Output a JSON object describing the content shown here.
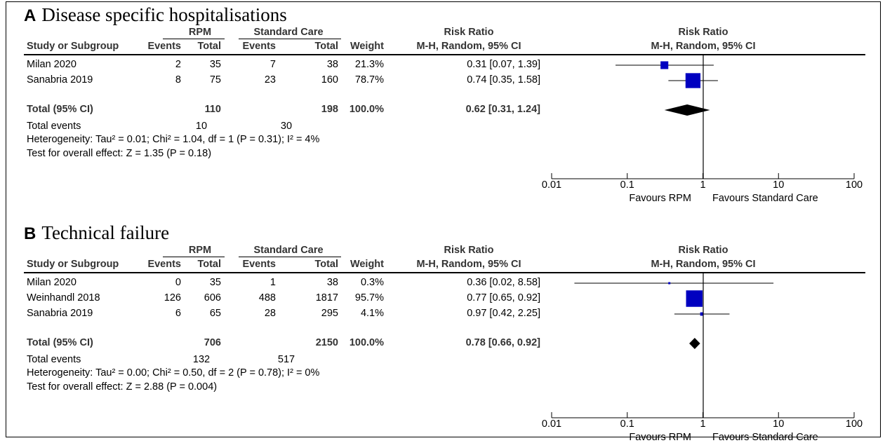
{
  "chart_data": [
    {
      "type": "forest",
      "panel_letter": "A",
      "title": "Disease specific hospitalisations",
      "group1_label": "RPM",
      "group2_label": "Standard Care",
      "header_study": "Study or Subgroup",
      "header_events": "Events",
      "header_total": "Total",
      "header_weight": "Weight",
      "header_rr": "Risk Ratio",
      "header_method": "M-H, Random, 95% CI",
      "studies": [
        {
          "name": "Milan 2020",
          "e1": "2",
          "t1": "35",
          "e2": "7",
          "t2": "38",
          "weight": "21.3%",
          "ci_text": "0.31 [0.07, 1.39]",
          "rr": 0.31,
          "lo": 0.07,
          "hi": 1.39,
          "w": 21.3
        },
        {
          "name": "Sanabria 2019",
          "e1": "8",
          "t1": "75",
          "e2": "23",
          "t2": "160",
          "weight": "78.7%",
          "ci_text": "0.74 [0.35, 1.58]",
          "rr": 0.74,
          "lo": 0.35,
          "hi": 1.58,
          "w": 78.7
        }
      ],
      "total": {
        "label": "Total (95% CI)",
        "t1": "110",
        "t2": "198",
        "weight": "100.0%",
        "ci_text": "0.62 [0.31, 1.24]",
        "rr": 0.62,
        "lo": 0.31,
        "hi": 1.24
      },
      "total_events": {
        "label": "Total events",
        "e1": "10",
        "e2": "30"
      },
      "heterogeneity": "Heterogeneity: Tau² = 0.01; Chi² = 1.04, df = 1 (P = 0.31); I² = 4%",
      "overall_effect": "Test for overall effect: Z = 1.35 (P = 0.18)",
      "x_ticks": [
        "0.01",
        "0.1",
        "1",
        "10",
        "100"
      ],
      "x_scale": "log",
      "xlim": [
        0.01,
        100
      ],
      "favours_left": "Favours RPM",
      "favours_right": "Favours Standard Care"
    },
    {
      "type": "forest",
      "panel_letter": "B",
      "title": "Technical failure",
      "group1_label": "RPM",
      "group2_label": "Standard Care",
      "header_study": "Study or Subgroup",
      "header_events": "Events",
      "header_total": "Total",
      "header_weight": "Weight",
      "header_rr": "Risk Ratio",
      "header_method": "M-H, Random, 95% CI",
      "studies": [
        {
          "name": "Milan 2020",
          "e1": "0",
          "t1": "35",
          "e2": "1",
          "t2": "38",
          "weight": "0.3%",
          "ci_text": "0.36 [0.02, 8.58]",
          "rr": 0.36,
          "lo": 0.02,
          "hi": 8.58,
          "w": 0.3
        },
        {
          "name": "Weinhandl 2018",
          "e1": "126",
          "t1": "606",
          "e2": "488",
          "t2": "1817",
          "weight": "95.7%",
          "ci_text": "0.77 [0.65, 0.92]",
          "rr": 0.77,
          "lo": 0.65,
          "hi": 0.92,
          "w": 95.7
        },
        {
          "name": "Sanabria 2019",
          "e1": "6",
          "t1": "65",
          "e2": "28",
          "t2": "295",
          "weight": "4.1%",
          "ci_text": "0.97 [0.42, 2.25]",
          "rr": 0.97,
          "lo": 0.42,
          "hi": 2.25,
          "w": 4.1
        }
      ],
      "total": {
        "label": "Total (95% CI)",
        "t1": "706",
        "t2": "2150",
        "weight": "100.0%",
        "ci_text": "0.78 [0.66, 0.92]",
        "rr": 0.78,
        "lo": 0.66,
        "hi": 0.92
      },
      "total_events": {
        "label": "Total events",
        "e1": "132",
        "e2": "517"
      },
      "heterogeneity": "Heterogeneity: Tau² = 0.00; Chi² = 0.50, df = 2 (P = 0.78); I² = 0%",
      "overall_effect": "Test for overall effect: Z = 2.88 (P = 0.004)",
      "x_ticks": [
        "0.01",
        "0.1",
        "1",
        "10",
        "100"
      ],
      "x_scale": "log",
      "xlim": [
        0.01,
        100
      ],
      "favours_left": "Favours RPM",
      "favours_right": "Favours Standard Care"
    }
  ],
  "colors": {
    "square": "#0000c0",
    "diamond": "#000000",
    "text": "#000000",
    "header": "#333333"
  }
}
